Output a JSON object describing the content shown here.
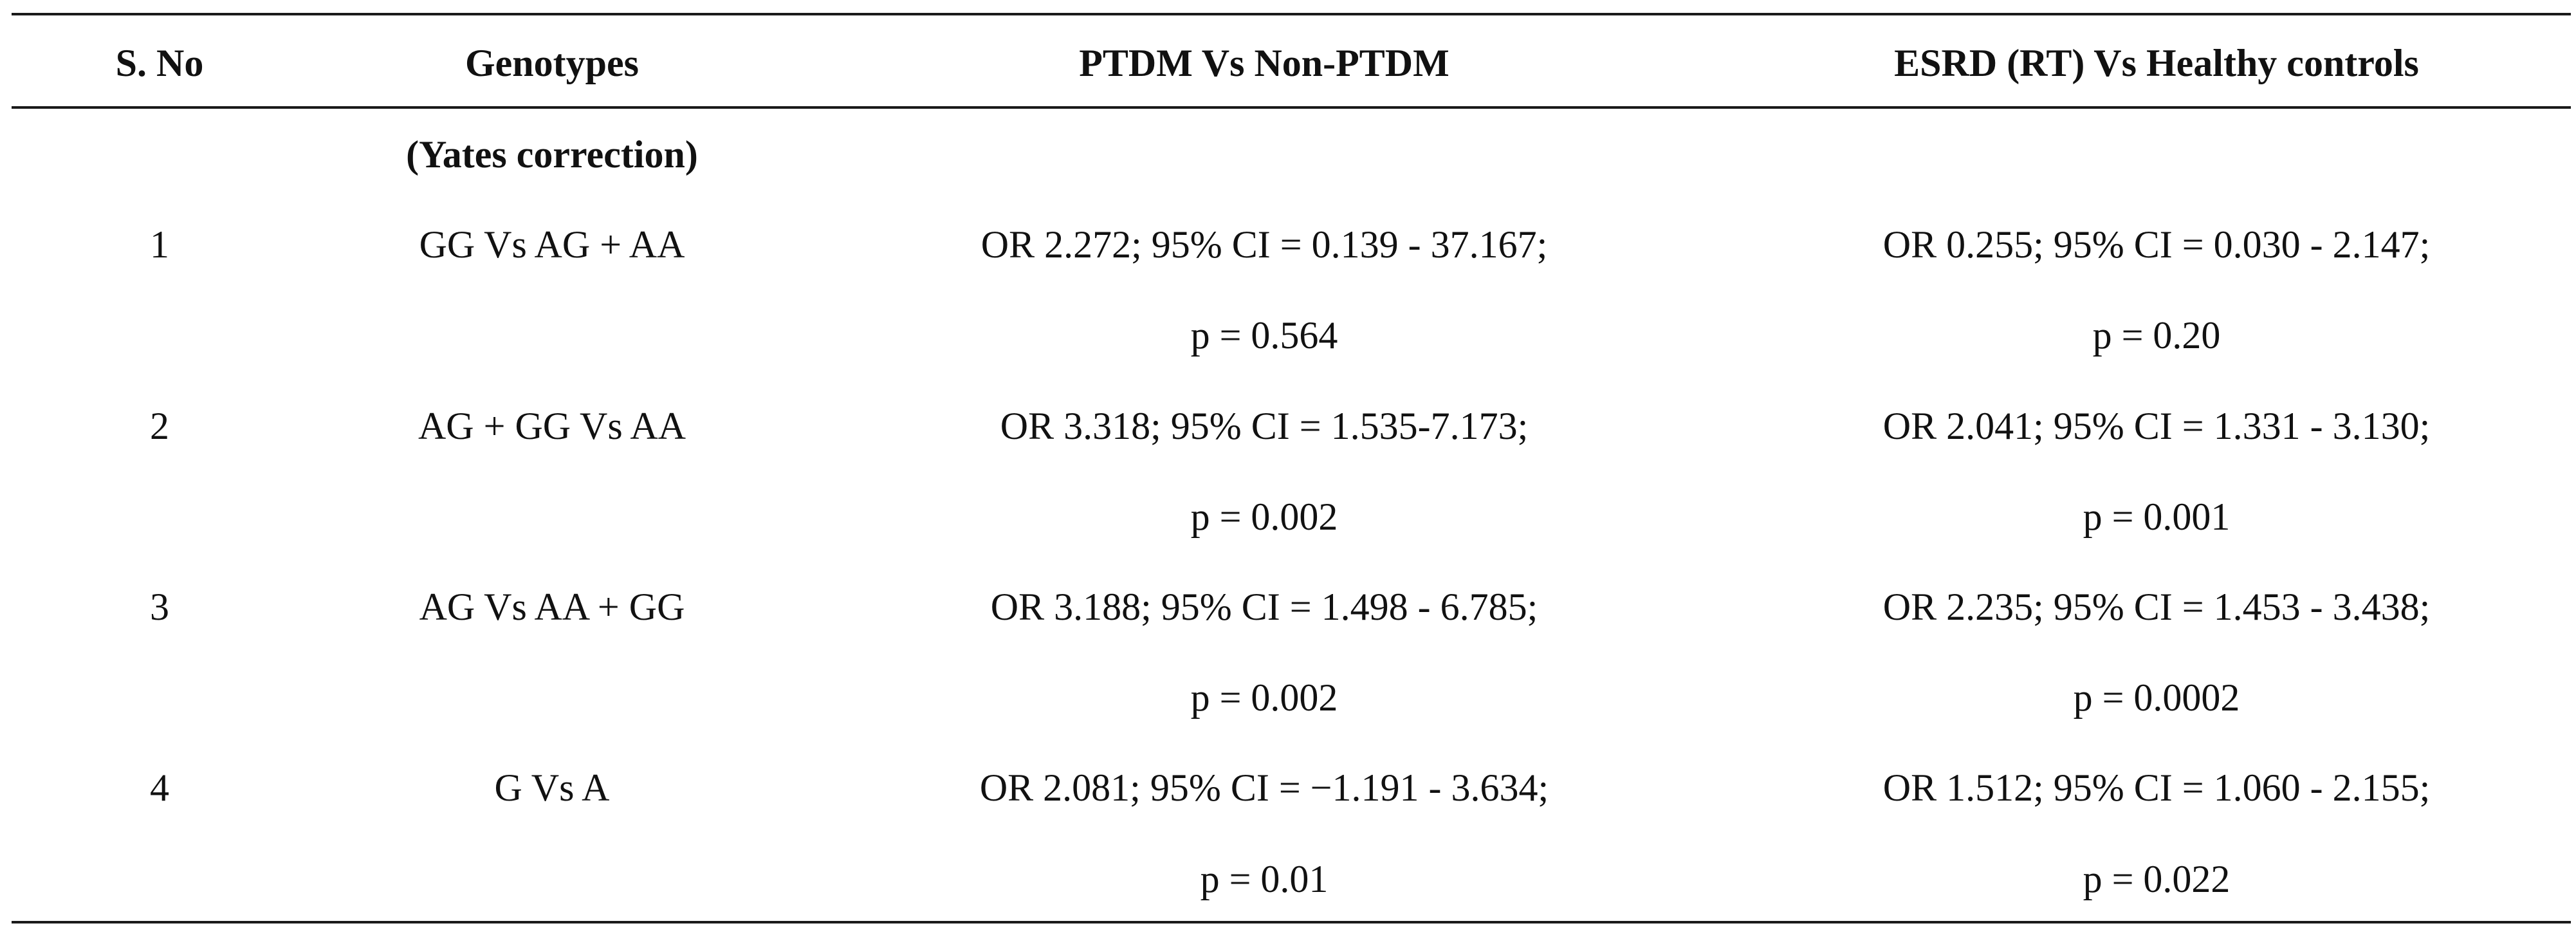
{
  "table": {
    "headers": {
      "sno": "S. No",
      "genotypes": "Genotypes",
      "ptdm": "PTDM Vs Non-PTDM",
      "esrd": "ESRD (RT) Vs Healthy controls"
    },
    "subheader": "(Yates correction)",
    "rows": [
      {
        "sno": "1",
        "genotype": "GG Vs AG + AA",
        "ptdm_or": "OR 2.272; 95% CI = 0.139 - 37.167;",
        "ptdm_p": "p = 0.564",
        "esrd_or": "OR 0.255; 95% CI = 0.030 - 2.147;",
        "esrd_p": "p = 0.20"
      },
      {
        "sno": "2",
        "genotype": "AG + GG Vs AA",
        "ptdm_or": "OR 3.318; 95% CI = 1.535-7.173;",
        "ptdm_p": "p = 0.002",
        "esrd_or": "OR 2.041; 95% CI = 1.331 - 3.130;",
        "esrd_p": "p = 0.001"
      },
      {
        "sno": "3",
        "genotype": "AG Vs AA + GG",
        "ptdm_or": "OR 3.188; 95% CI = 1.498 - 6.785;",
        "ptdm_p": "p = 0.002",
        "esrd_or": "OR 2.235; 95% CI = 1.453 - 3.438;",
        "esrd_p": "p = 0.0002"
      },
      {
        "sno": "4",
        "genotype": "G Vs A",
        "ptdm_or": "OR 2.081; 95% CI = −1.191 - 3.634;",
        "ptdm_p": "p = 0.01",
        "esrd_or": "OR 1.512; 95% CI = 1.060 - 2.155;",
        "esrd_p": "p = 0.022"
      }
    ]
  }
}
